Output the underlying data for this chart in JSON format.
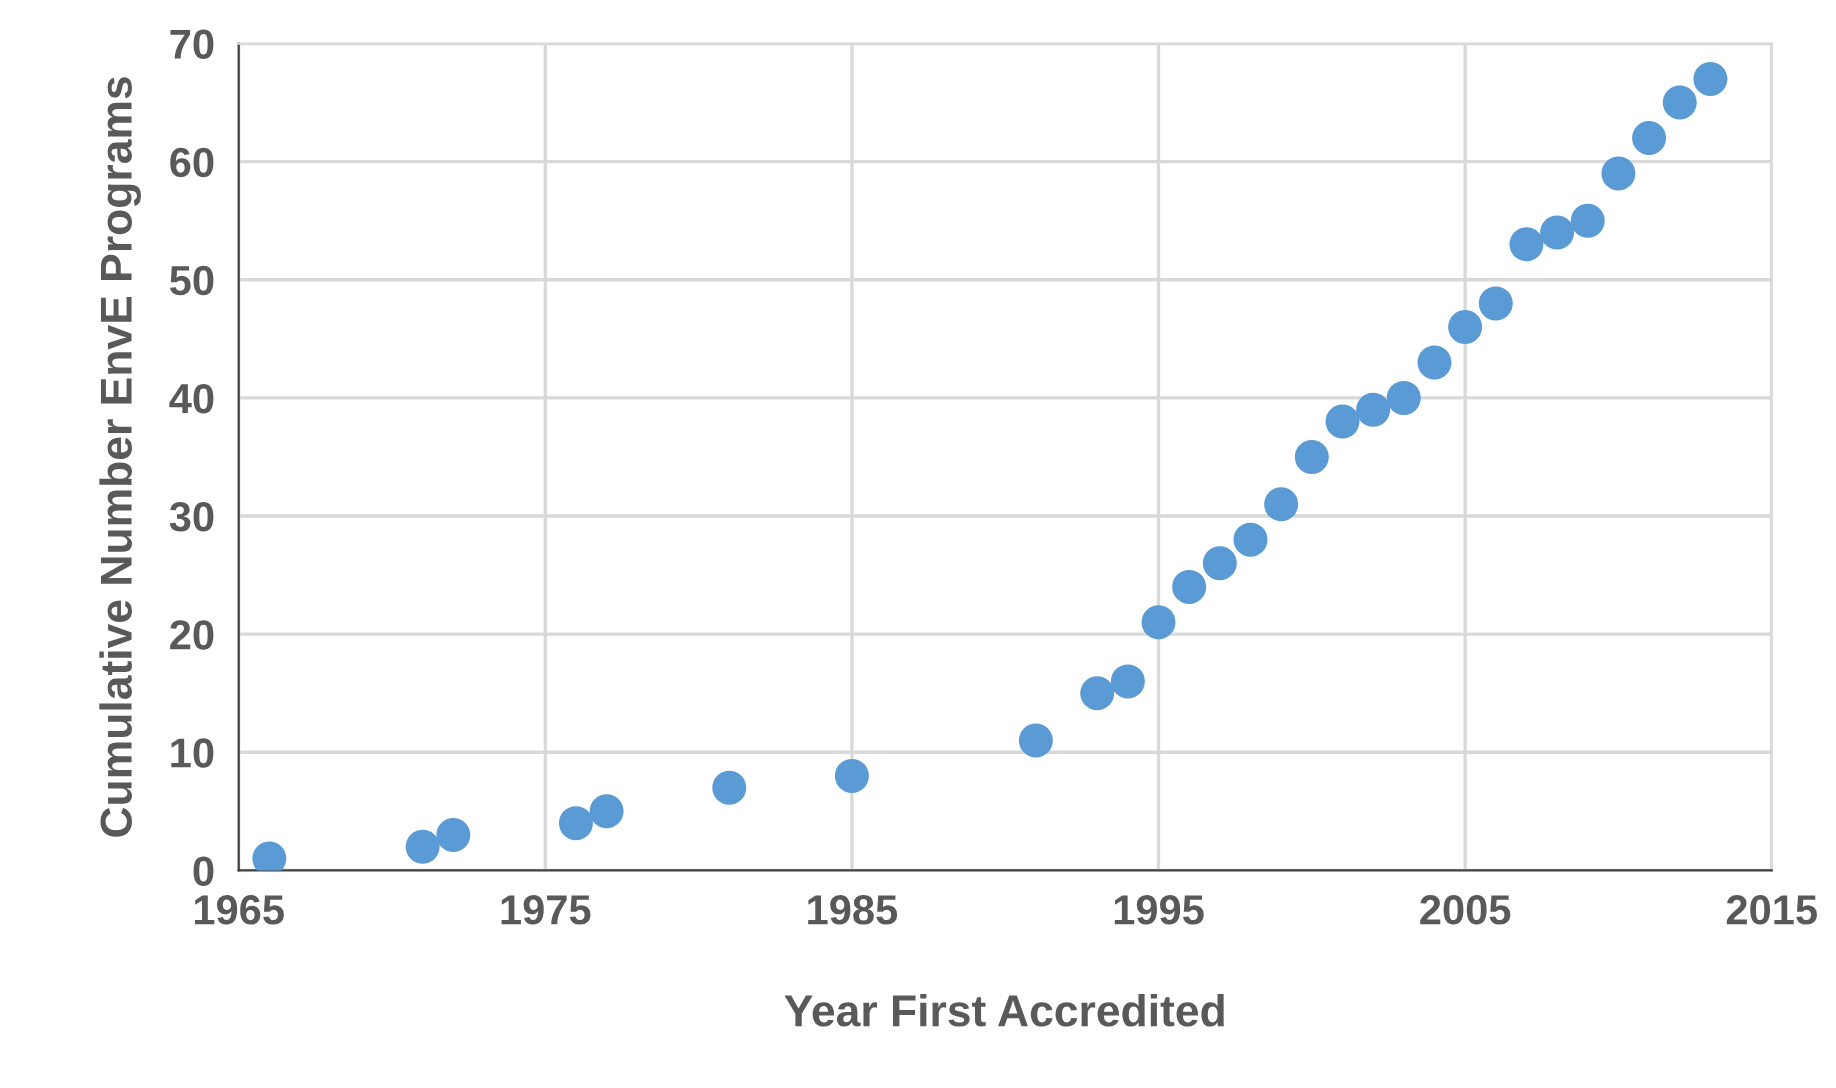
{
  "chart_data": {
    "type": "scatter",
    "xlabel": "Year First Accredited",
    "ylabel": "Cumulative Number EnvE Programs",
    "x": [
      1966,
      1971,
      1972,
      1976,
      1977,
      1981,
      1985,
      1991,
      1993,
      1994,
      1995,
      1996,
      1997,
      1998,
      1999,
      2000,
      2001,
      2002,
      2003,
      2004,
      2005,
      2006,
      2007,
      2008,
      2009,
      2010,
      2011,
      2012,
      2013
    ],
    "values": [
      1,
      2,
      3,
      4,
      5,
      7,
      8,
      11,
      15,
      16,
      21,
      24,
      26,
      28,
      31,
      35,
      38,
      39,
      40,
      43,
      46,
      48,
      53,
      54,
      55,
      59,
      62,
      65,
      67
    ],
    "color": "#5b9bd5",
    "marker": "circle",
    "xlim": [
      1965,
      2015
    ],
    "xticks": [
      1965,
      1975,
      1985,
      1995,
      2005,
      2015
    ],
    "ylim": [
      0,
      70
    ],
    "yticks": [
      0,
      10,
      20,
      30,
      40,
      50,
      60,
      70
    ],
    "grid": true,
    "legend": false
  }
}
